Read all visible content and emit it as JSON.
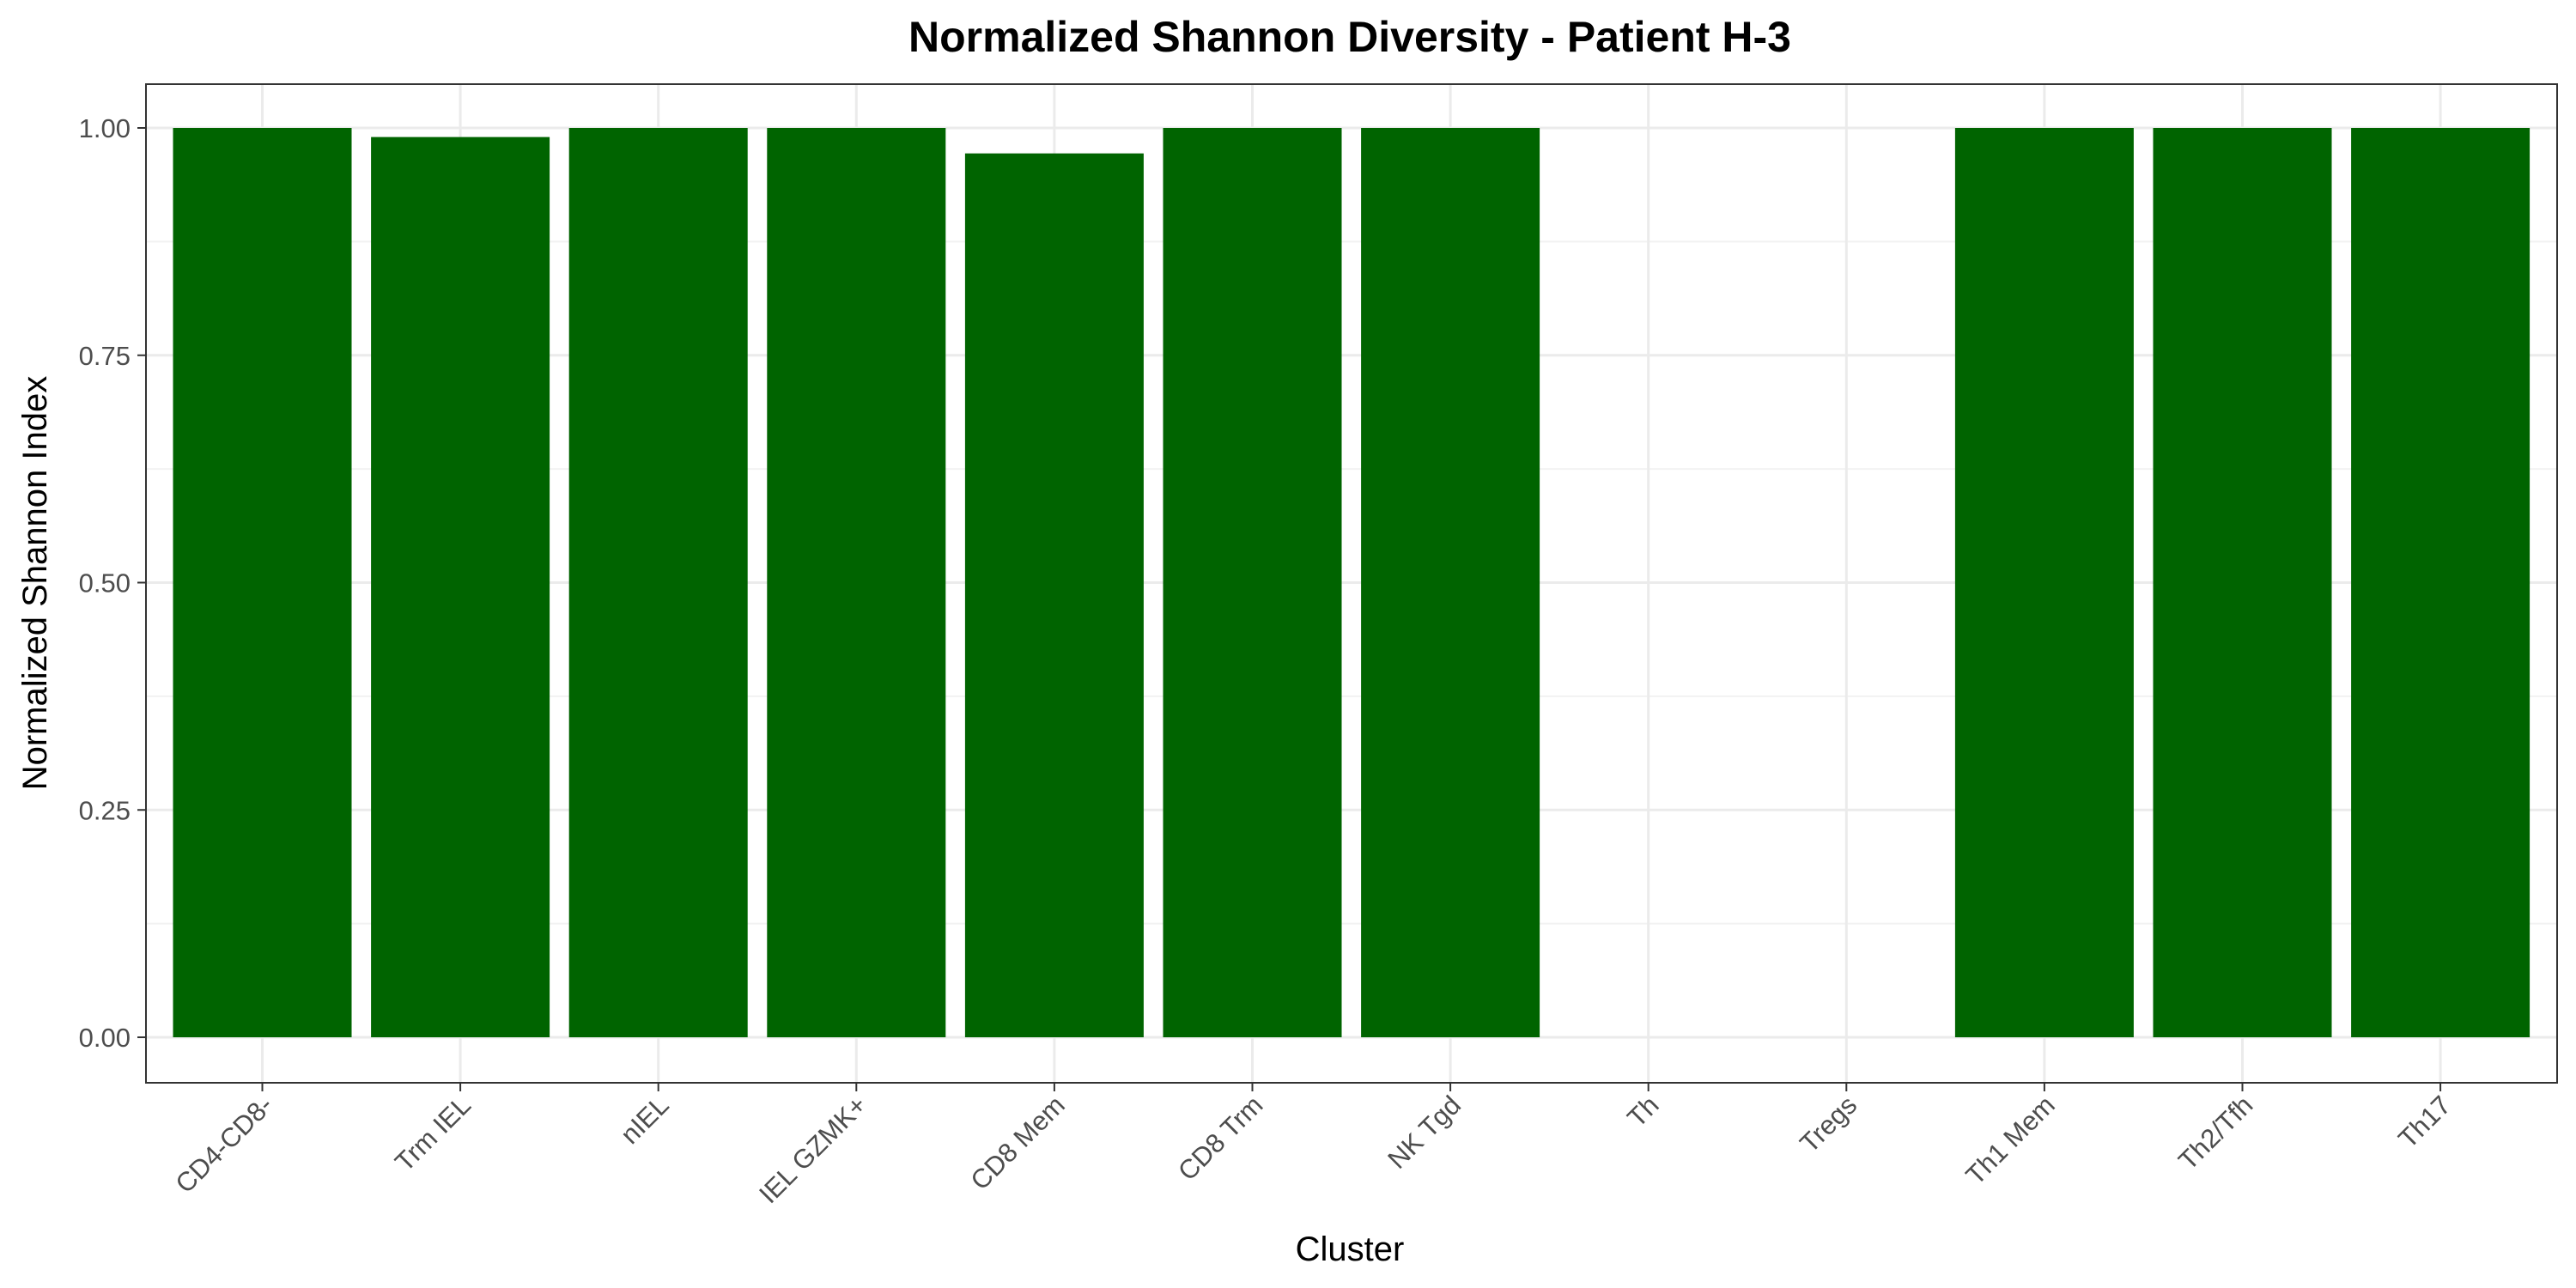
{
  "chart_data": {
    "type": "bar",
    "title": "Normalized Shannon Diversity - Patient H-3",
    "xlabel": "Cluster",
    "ylabel": "Normalized Shannon Index",
    "categories": [
      "CD4-CD8-",
      "Trm IEL",
      "nIEL",
      "IEL GZMK+",
      "CD8 Mem",
      "CD8 Trm",
      "NK Tgd",
      "Th",
      "Tregs",
      "Th1 Mem",
      "Th2/Tfh",
      "Th17"
    ],
    "values": [
      1.0,
      0.99,
      1.0,
      1.0,
      0.972,
      1.0,
      1.0,
      null,
      null,
      1.0,
      1.0,
      1.0
    ],
    "ylim": [
      0,
      1
    ],
    "yticks": [
      "0.00",
      "0.25",
      "0.50",
      "0.75",
      "1.00"
    ],
    "bar_color": "#006400",
    "grid": true,
    "legend": "none"
  }
}
